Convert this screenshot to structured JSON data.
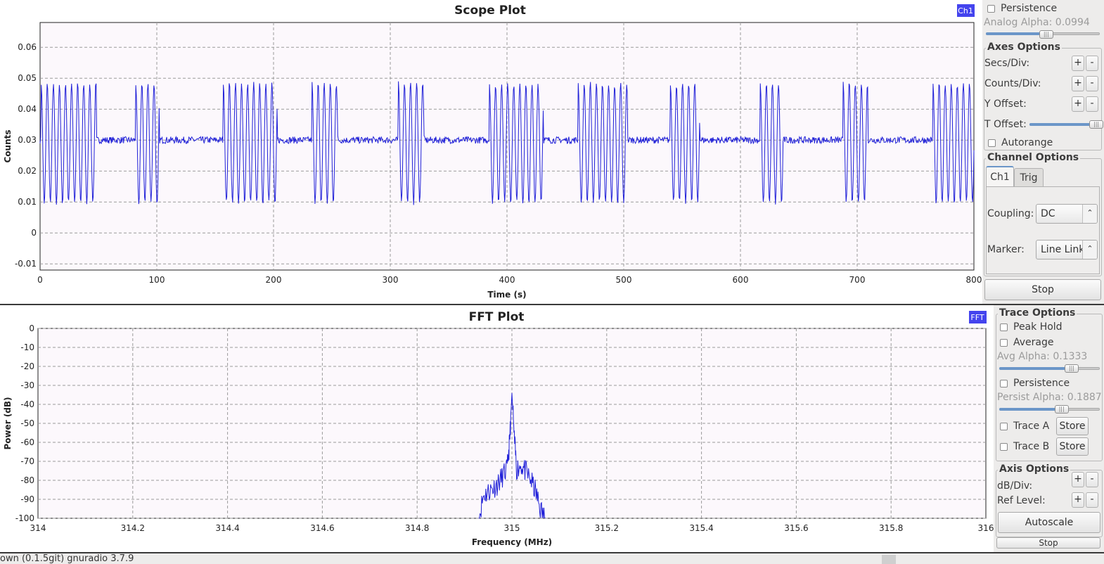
{
  "colors": {
    "trace": "#2020d8",
    "legend": "#4444ee",
    "plot_bg": "#fcf8fc"
  },
  "scope": {
    "title": "Scope Plot",
    "legend": "Ch1",
    "xlabel": "Time (s)",
    "ylabel": "Counts",
    "xticks": [
      "0",
      "100",
      "200",
      "300",
      "400",
      "500",
      "600",
      "700",
      "800"
    ],
    "yticks": [
      "0.06",
      "0.05",
      "0.04",
      "0.03",
      "0.02",
      "0.01",
      "0",
      "-0.01"
    ]
  },
  "fft": {
    "title": "FFT Plot",
    "legend": "FFT",
    "xlabel": "Frequency (MHz)",
    "ylabel": "Power (dB)",
    "xticks": [
      "314",
      "314.2",
      "314.4",
      "314.6",
      "314.8",
      "315",
      "315.2",
      "315.4",
      "315.6",
      "315.8",
      "316"
    ],
    "yticks": [
      "0",
      "-10",
      "-20",
      "-30",
      "-40",
      "-50",
      "-60",
      "-70",
      "-80",
      "-90",
      "-100"
    ]
  },
  "chart_data": [
    {
      "type": "line",
      "title": "Scope Plot",
      "xlabel": "Time (s)",
      "ylabel": "Counts",
      "xlim": [
        0,
        800
      ],
      "ylim": [
        -0.012,
        0.068
      ],
      "grid": true,
      "legend_placement": "top-right",
      "series": [
        {
          "name": "Ch1",
          "baseline": 0.03,
          "burst_high": 0.049,
          "burst_low": 0.009,
          "bursts": [
            [
              1,
              48
            ],
            [
              82,
              102
            ],
            [
              157,
              203
            ],
            [
              233,
              255
            ],
            [
              307,
              329
            ],
            [
              385,
              431
            ],
            [
              461,
              503
            ],
            [
              540,
              565
            ],
            [
              617,
              636
            ],
            [
              688,
              709
            ],
            [
              765,
              800
            ]
          ]
        }
      ]
    },
    {
      "type": "line",
      "title": "FFT Plot",
      "xlabel": "Frequency (MHz)",
      "ylabel": "Power (dB)",
      "xlim": [
        314,
        316
      ],
      "ylim": [
        -100,
        0
      ],
      "grid": true,
      "legend_placement": "top-right",
      "series": [
        {
          "name": "FFT",
          "x": [
            314.93,
            314.94,
            314.95,
            314.96,
            314.97,
            314.98,
            314.99,
            314.995,
            315.0,
            315.005,
            315.01,
            315.02,
            315.03,
            315.04,
            315.05,
            315.06,
            315.07
          ],
          "values": [
            -100,
            -88,
            -86,
            -84,
            -82,
            -78,
            -74,
            -60,
            -34,
            -58,
            -74,
            -72,
            -76,
            -80,
            -86,
            -95,
            -100
          ]
        }
      ]
    }
  ],
  "scope_panel": {
    "persistence_label": "Persistence",
    "analog_alpha_label": "Analog Alpha: 0.0994",
    "analog_alpha_level": 0.53,
    "axes_options_title": "Axes Options",
    "secs_div_label": "Secs/Div:",
    "counts_div_label": "Counts/Div:",
    "y_offset_label": "Y Offset:",
    "t_offset_label": "T Offset:",
    "t_offset_level": 0.97,
    "autorange_label": "Autorange",
    "plus": "+",
    "minus": "-",
    "channel_options_title": "Channel Options",
    "tab_ch1": "Ch1",
    "tab_trig": "Trig",
    "coupling_label": "Coupling:",
    "coupling_value": "DC",
    "marker_label": "Marker:",
    "marker_value": "Line Link",
    "stop_label": "Stop"
  },
  "fft_panel": {
    "trace_options_title": "Trace Options",
    "peak_hold_label": "Peak Hold",
    "average_label": "Average",
    "avg_alpha_label": "Avg Alpha: 0.1333",
    "avg_alpha_level": 0.72,
    "persistence_label": "Persistence",
    "persist_alpha_label": "Persist Alpha: 0.1887",
    "persist_alpha_level": 0.62,
    "trace_a_label": "Trace A",
    "trace_b_label": "Trace B",
    "store_label": "Store",
    "axis_options_title": "Axis Options",
    "db_div_label": "dB/Div:",
    "ref_level_label": "Ref Level:",
    "plus": "+",
    "minus": "-",
    "autoscale_label": "Autoscale",
    "stop_label": "Stop"
  },
  "statusbar": {
    "text": "own (0.1.5git) gnuradio 3.7.9"
  }
}
